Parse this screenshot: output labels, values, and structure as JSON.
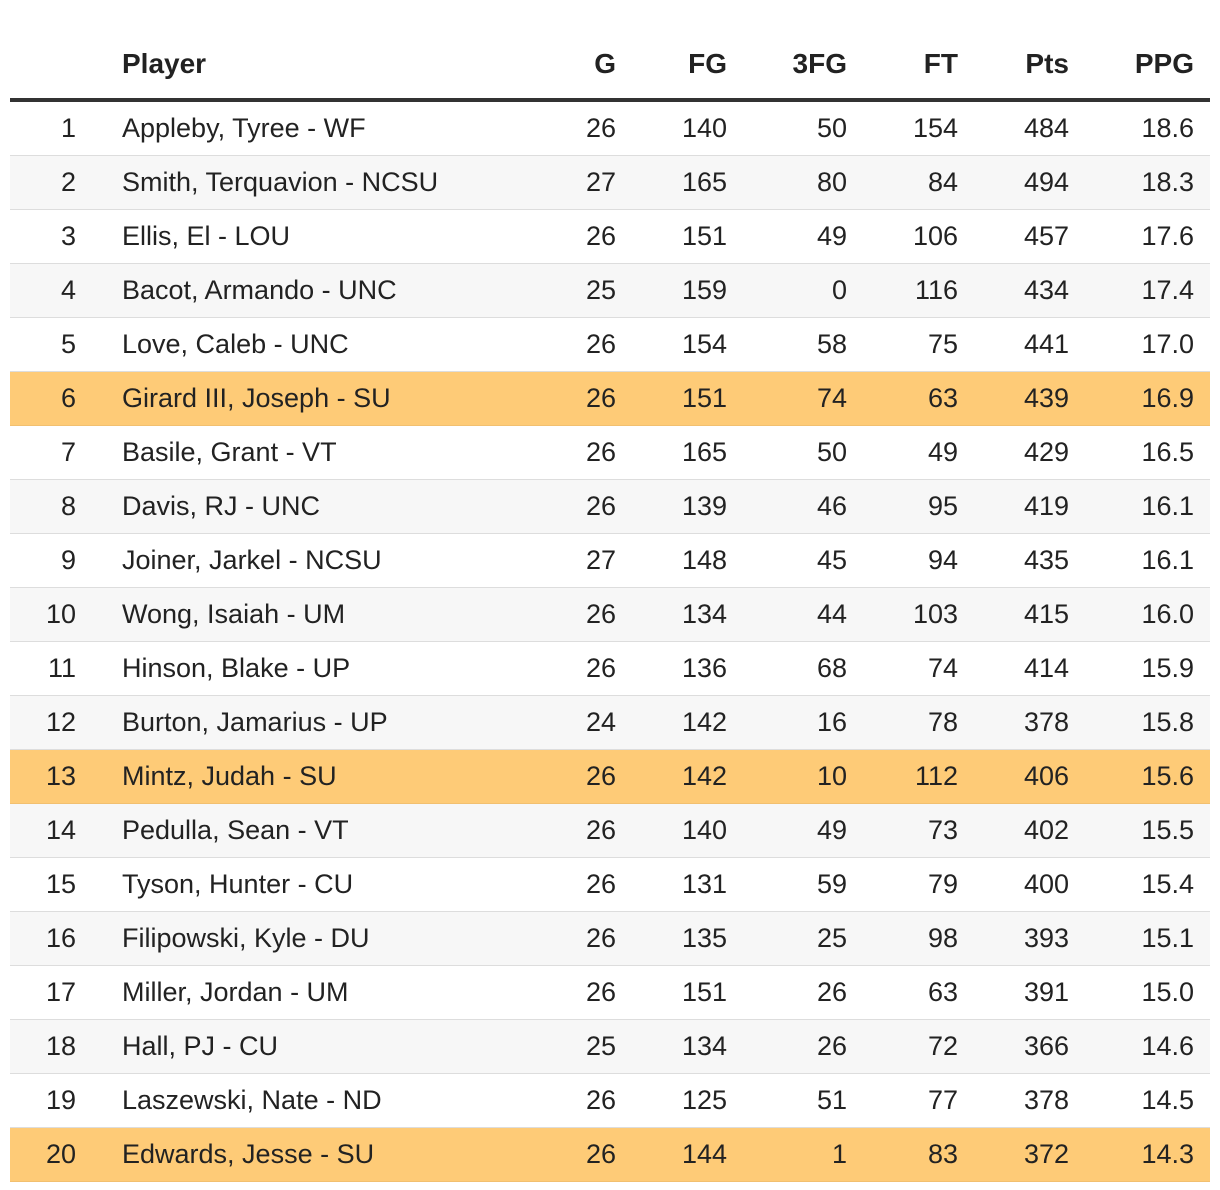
{
  "chart_data": {
    "type": "table",
    "columns": [
      "",
      "Player",
      "G",
      "FG",
      "3FG",
      "FT",
      "Pts",
      "PPG"
    ],
    "highlight_color": "#fecb77",
    "rows": [
      {
        "rank": "1",
        "player": "Appleby, Tyree - WF",
        "g": "26",
        "fg": "140",
        "tfg": "50",
        "ft": "154",
        "pts": "484",
        "ppg": "18.6",
        "highlight": false
      },
      {
        "rank": "2",
        "player": "Smith, Terquavion - NCSU",
        "g": "27",
        "fg": "165",
        "tfg": "80",
        "ft": "84",
        "pts": "494",
        "ppg": "18.3",
        "highlight": false
      },
      {
        "rank": "3",
        "player": "Ellis, El - LOU",
        "g": "26",
        "fg": "151",
        "tfg": "49",
        "ft": "106",
        "pts": "457",
        "ppg": "17.6",
        "highlight": false
      },
      {
        "rank": "4",
        "player": "Bacot, Armando - UNC",
        "g": "25",
        "fg": "159",
        "tfg": "0",
        "ft": "116",
        "pts": "434",
        "ppg": "17.4",
        "highlight": false
      },
      {
        "rank": "5",
        "player": "Love, Caleb - UNC",
        "g": "26",
        "fg": "154",
        "tfg": "58",
        "ft": "75",
        "pts": "441",
        "ppg": "17.0",
        "highlight": false
      },
      {
        "rank": "6",
        "player": "Girard III, Joseph - SU",
        "g": "26",
        "fg": "151",
        "tfg": "74",
        "ft": "63",
        "pts": "439",
        "ppg": "16.9",
        "highlight": true
      },
      {
        "rank": "7",
        "player": "Basile, Grant - VT",
        "g": "26",
        "fg": "165",
        "tfg": "50",
        "ft": "49",
        "pts": "429",
        "ppg": "16.5",
        "highlight": false
      },
      {
        "rank": "8",
        "player": "Davis, RJ - UNC",
        "g": "26",
        "fg": "139",
        "tfg": "46",
        "ft": "95",
        "pts": "419",
        "ppg": "16.1",
        "highlight": false
      },
      {
        "rank": "9",
        "player": "Joiner, Jarkel - NCSU",
        "g": "27",
        "fg": "148",
        "tfg": "45",
        "ft": "94",
        "pts": "435",
        "ppg": "16.1",
        "highlight": false
      },
      {
        "rank": "10",
        "player": "Wong, Isaiah - UM",
        "g": "26",
        "fg": "134",
        "tfg": "44",
        "ft": "103",
        "pts": "415",
        "ppg": "16.0",
        "highlight": false
      },
      {
        "rank": "11",
        "player": "Hinson, Blake - UP",
        "g": "26",
        "fg": "136",
        "tfg": "68",
        "ft": "74",
        "pts": "414",
        "ppg": "15.9",
        "highlight": false
      },
      {
        "rank": "12",
        "player": "Burton, Jamarius - UP",
        "g": "24",
        "fg": "142",
        "tfg": "16",
        "ft": "78",
        "pts": "378",
        "ppg": "15.8",
        "highlight": false
      },
      {
        "rank": "13",
        "player": "Mintz, Judah - SU",
        "g": "26",
        "fg": "142",
        "tfg": "10",
        "ft": "112",
        "pts": "406",
        "ppg": "15.6",
        "highlight": true
      },
      {
        "rank": "14",
        "player": "Pedulla, Sean - VT",
        "g": "26",
        "fg": "140",
        "tfg": "49",
        "ft": "73",
        "pts": "402",
        "ppg": "15.5",
        "highlight": false
      },
      {
        "rank": "15",
        "player": "Tyson, Hunter - CU",
        "g": "26",
        "fg": "131",
        "tfg": "59",
        "ft": "79",
        "pts": "400",
        "ppg": "15.4",
        "highlight": false
      },
      {
        "rank": "16",
        "player": "Filipowski, Kyle - DU",
        "g": "26",
        "fg": "135",
        "tfg": "25",
        "ft": "98",
        "pts": "393",
        "ppg": "15.1",
        "highlight": false
      },
      {
        "rank": "17",
        "player": "Miller, Jordan - UM",
        "g": "26",
        "fg": "151",
        "tfg": "26",
        "ft": "63",
        "pts": "391",
        "ppg": "15.0",
        "highlight": false
      },
      {
        "rank": "18",
        "player": "Hall, PJ - CU",
        "g": "25",
        "fg": "134",
        "tfg": "26",
        "ft": "72",
        "pts": "366",
        "ppg": "14.6",
        "highlight": false
      },
      {
        "rank": "19",
        "player": "Laszewski, Nate - ND",
        "g": "26",
        "fg": "125",
        "tfg": "51",
        "ft": "77",
        "pts": "378",
        "ppg": "14.5",
        "highlight": false
      },
      {
        "rank": "20",
        "player": "Edwards, Jesse - SU",
        "g": "26",
        "fg": "144",
        "tfg": "1",
        "ft": "83",
        "pts": "372",
        "ppg": "14.3",
        "highlight": true
      }
    ]
  }
}
